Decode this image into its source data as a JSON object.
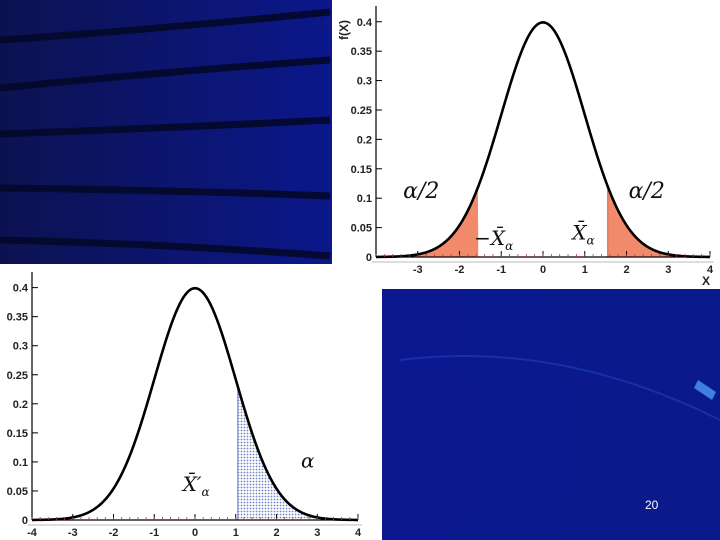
{
  "page": {
    "number": "20"
  },
  "colors": {
    "background": "#0a1470",
    "curve": "#000000",
    "two_tail_fill": "#f08a6a",
    "one_tail_fill": "#9aaed6"
  },
  "chart_data": [
    {
      "type": "area",
      "curve": "standard normal density f(x) = exp(-x^2/2)/sqrt(2*pi)",
      "x": [
        -4,
        -3.5,
        -3,
        -2.5,
        -2,
        -1.5,
        -1,
        -0.5,
        0,
        0.5,
        1,
        1.5,
        2,
        2.5,
        3,
        3.5,
        4
      ],
      "y": [
        0.0001,
        0.0009,
        0.0044,
        0.0175,
        0.054,
        0.1295,
        0.242,
        0.3521,
        0.3989,
        0.3521,
        0.242,
        0.1295,
        0.054,
        0.0175,
        0.0044,
        0.0009,
        0.0001
      ],
      "xlim": [
        -4,
        4
      ],
      "ylim": [
        0,
        0.42
      ],
      "xticks": [
        "-3",
        "-2",
        "-1",
        "0",
        "1",
        "2",
        "3",
        "4"
      ],
      "yticks": [
        "0",
        "0.05",
        "0.1",
        "0.15",
        "0.2",
        "0.25",
        "0.3",
        "0.35",
        "0.4"
      ],
      "xlabel": "X",
      "ylabel": "f(X)",
      "shaded_regions": [
        {
          "from": -4,
          "to": -1.55
        },
        {
          "from": 1.55,
          "to": 4
        }
      ],
      "annotations": {
        "left_tail": "α/2",
        "right_tail": "α/2",
        "left_cut": "−X̄",
        "left_cut_sub": "α",
        "right_cut": "X̄",
        "right_cut_sub": "α"
      }
    },
    {
      "type": "area",
      "curve": "standard normal density f(x) = exp(-x^2/2)/sqrt(2*pi)",
      "x": [
        -4,
        -3.5,
        -3,
        -2.5,
        -2,
        -1.5,
        -1,
        -0.5,
        0,
        0.5,
        1,
        1.5,
        2,
        2.5,
        3,
        3.5,
        4
      ],
      "y": [
        0.0001,
        0.0009,
        0.0044,
        0.0175,
        0.054,
        0.1295,
        0.242,
        0.3521,
        0.3989,
        0.3521,
        0.242,
        0.1295,
        0.054,
        0.0175,
        0.0044,
        0.0009,
        0.0001
      ],
      "xlim": [
        -4,
        4
      ],
      "ylim": [
        0,
        0.42
      ],
      "xticks": [
        "-4",
        "-3",
        "-2",
        "-1",
        "0",
        "1",
        "2",
        "3",
        "4"
      ],
      "yticks": [
        "0",
        "0.05",
        "0.1",
        "0.15",
        "0.2",
        "0.25",
        "0.3",
        "0.35",
        "0.4"
      ],
      "xlabel": "",
      "ylabel": "",
      "shaded_regions": [
        {
          "from": 1.05,
          "to": 4
        }
      ],
      "annotations": {
        "tail": "α",
        "cut": "X̄′",
        "cut_sub": "α"
      }
    }
  ]
}
